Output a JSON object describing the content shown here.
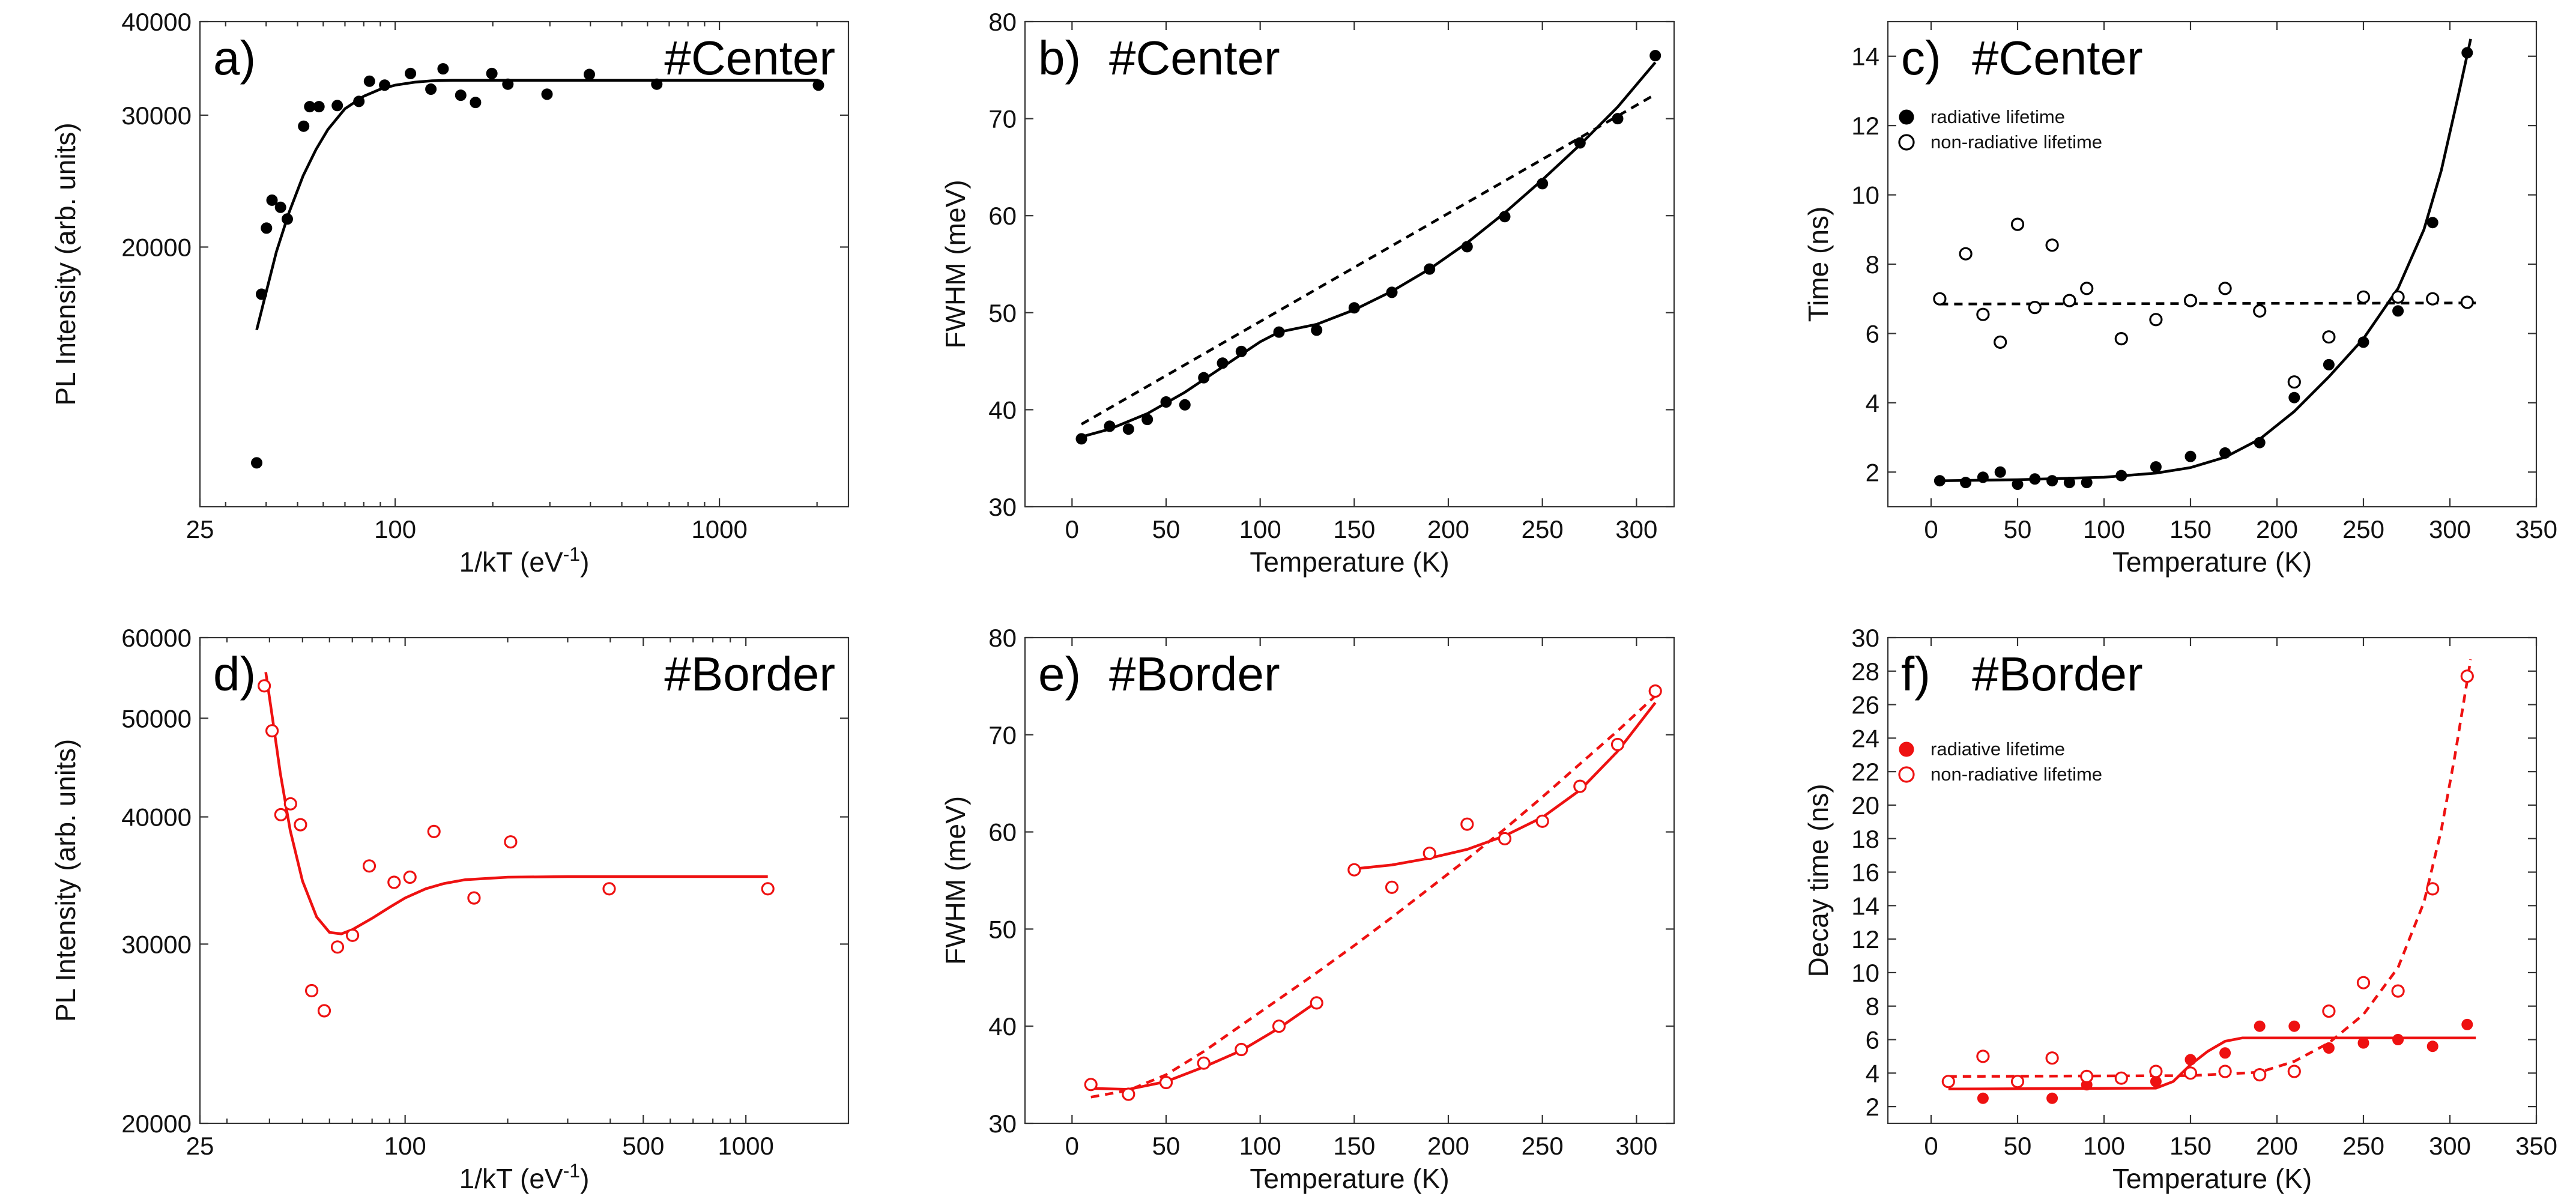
{
  "colors": {
    "center": "#000000",
    "border": "#ee1111"
  },
  "panels": [
    {
      "id": "a",
      "letter": "a)",
      "title": "#Center",
      "color": "#000000",
      "xscale": "log",
      "yscale": "log",
      "xlim": [
        25,
        2500
      ],
      "ylim": [
        9000,
        40000
      ],
      "xticks": [
        25,
        100,
        1000
      ],
      "xticklabels": [
        "25",
        "100",
        "1000"
      ],
      "yticks": [
        20000,
        30000,
        40000
      ],
      "yticklabels": [
        "20000",
        "30000",
        "40000"
      ],
      "xlabel": "1/kT (eV",
      "xlabel_sup": "-1",
      "xlabel_end": ")",
      "ylabel": "PL Intensity (arb. units)",
      "series": [
        {
          "name": "PL intensity",
          "marker": "filled",
          "x": [
            37.4,
            38.7,
            40.1,
            41.7,
            44.3,
            46.5,
            52.2,
            54.5,
            58.2,
            66.3,
            77.3,
            83.3,
            92.8,
            111.5,
            128.9,
            140.5,
            159.3,
            176.9,
            198.7,
            222.6,
            294,
            397,
            641,
            2020
          ],
          "y": [
            10300,
            17300,
            21200,
            23100,
            22600,
            21800,
            29000,
            30800,
            30800,
            30900,
            31300,
            33300,
            32900,
            34100,
            32500,
            34600,
            31900,
            31200,
            34100,
            33000,
            32000,
            34000,
            33000,
            32900
          ]
        }
      ],
      "fits": [
        {
          "style": "solid",
          "x": [
            37.4,
            40,
            43,
            47,
            52,
            57,
            62,
            70,
            80,
            90,
            100,
            115,
            130,
            150,
            200,
            300,
            500,
            1000,
            2020
          ],
          "y": [
            15500,
            17400,
            19700,
            22200,
            24900,
            27000,
            28700,
            30600,
            31800,
            32500,
            32900,
            33200,
            33350,
            33400,
            33400,
            33400,
            33400,
            33400,
            33400
          ]
        }
      ]
    },
    {
      "id": "b",
      "letter": "b)",
      "title": "#Center",
      "color": "#000000",
      "xscale": "linear",
      "yscale": "linear",
      "xlim": [
        -25,
        320
      ],
      "ylim": [
        30,
        80
      ],
      "xticks": [
        0,
        50,
        100,
        150,
        200,
        250,
        300
      ],
      "xticklabels": [
        "0",
        "50",
        "100",
        "150",
        "200",
        "250",
        "300"
      ],
      "yticks": [
        30,
        40,
        50,
        60,
        70,
        80
      ],
      "yticklabels": [
        "30",
        "40",
        "50",
        "60",
        "70",
        "80"
      ],
      "xlabel": "Temperature (K)",
      "ylabel": "FWHM (meV)",
      "series": [
        {
          "name": "FWHM",
          "marker": "filled",
          "x": [
            5,
            20,
            30,
            40,
            50,
            60,
            70,
            80,
            90,
            110,
            130,
            150,
            170,
            190,
            210,
            230,
            250,
            270,
            290,
            310
          ],
          "y": [
            37,
            38.3,
            38,
            39,
            40.8,
            40.5,
            43.3,
            44.8,
            46,
            48,
            48.2,
            50.5,
            52.1,
            54.5,
            56.8,
            59.9,
            63.3,
            67.5,
            70,
            76.5
          ]
        }
      ],
      "fits": [
        {
          "style": "solid",
          "x": [
            5,
            20,
            40,
            60,
            80,
            100,
            110,
            130,
            150,
            170,
            190,
            210,
            230,
            250,
            270,
            290,
            310
          ],
          "y": [
            37.2,
            38,
            39.6,
            41.8,
            44.4,
            47,
            48,
            48.8,
            50.3,
            52.2,
            54.5,
            57.2,
            60.3,
            63.7,
            67.3,
            71.2,
            75.8
          ]
        },
        {
          "style": "dashed",
          "x": [
            5,
            310
          ],
          "y": [
            38.5,
            72.5
          ]
        }
      ]
    },
    {
      "id": "c",
      "letter": "c)",
      "title": "#Center",
      "color": "#000000",
      "xscale": "linear",
      "yscale": "linear",
      "xlim": [
        -25,
        350
      ],
      "ylim": [
        1,
        15
      ],
      "xticks": [
        0,
        50,
        100,
        150,
        200,
        250,
        300,
        350
      ],
      "xticklabels": [
        "0",
        "50",
        "100",
        "150",
        "200",
        "250",
        "300",
        "350"
      ],
      "yticks": [
        2,
        4,
        6,
        8,
        10,
        12,
        14
      ],
      "yticklabels": [
        "2",
        "4",
        "6",
        "8",
        "10",
        "12",
        "14"
      ],
      "xlabel": "Temperature (K)",
      "ylabel": "Time (ns)",
      "legend": [
        {
          "label": "radiative lifetime",
          "marker": "filled"
        },
        {
          "label": "non-radiative lifetime",
          "marker": "open"
        }
      ],
      "series": [
        {
          "name": "radiative lifetime",
          "marker": "filled",
          "x": [
            5,
            20,
            30,
            40,
            50,
            60,
            70,
            80,
            90,
            110,
            130,
            150,
            170,
            190,
            210,
            230,
            250,
            270,
            290,
            310
          ],
          "y": [
            1.75,
            1.7,
            1.85,
            2.0,
            1.65,
            1.8,
            1.75,
            1.7,
            1.7,
            1.9,
            2.15,
            2.45,
            2.55,
            2.85,
            4.15,
            5.1,
            5.75,
            6.65,
            9.2,
            14.1
          ]
        },
        {
          "name": "non-radiative lifetime",
          "marker": "open",
          "x": [
            5,
            20,
            30,
            40,
            50,
            60,
            70,
            80,
            90,
            110,
            130,
            150,
            170,
            190,
            210,
            230,
            250,
            270,
            290,
            310
          ],
          "y": [
            7.0,
            8.3,
            6.55,
            5.75,
            9.15,
            6.75,
            8.55,
            6.95,
            7.3,
            5.85,
            6.4,
            6.95,
            7.3,
            6.65,
            4.6,
            5.9,
            7.05,
            7.05,
            7.0,
            6.9
          ]
        }
      ],
      "fits": [
        {
          "style": "solid",
          "x": [
            5,
            50,
            100,
            130,
            150,
            170,
            190,
            210,
            230,
            250,
            270,
            285,
            295,
            305,
            312
          ],
          "y": [
            1.75,
            1.78,
            1.85,
            1.97,
            2.13,
            2.43,
            2.95,
            3.75,
            4.75,
            5.85,
            7.3,
            9.0,
            10.7,
            12.9,
            14.5
          ]
        },
        {
          "style": "dashed",
          "x": [
            5,
            315
          ],
          "y": [
            6.85,
            6.88
          ]
        }
      ]
    },
    {
      "id": "d",
      "letter": "d)",
      "title": "#Border",
      "color": "#ee1111",
      "xscale": "log",
      "yscale": "log",
      "xlim": [
        25,
        2000
      ],
      "ylim": [
        20000,
        60000
      ],
      "xticks": [
        25,
        100,
        500,
        1000
      ],
      "xticklabels": [
        "25",
        "100",
        "500",
        "1000"
      ],
      "yticks": [
        20000,
        30000,
        40000,
        50000,
        60000
      ],
      "yticklabels": [
        "20000",
        "30000",
        "40000",
        "50000",
        "60000"
      ],
      "xlabel": "1/kT (eV",
      "xlabel_sup": "-1",
      "xlabel_end": ")",
      "ylabel": "PL Intensity (arb. units)",
      "series": [
        {
          "name": "PL intensity",
          "marker": "open",
          "x": [
            38.6,
            40.7,
            43.2,
            46.1,
            49.3,
            53.2,
            57.9,
            63.3,
            70.1,
            78.5,
            92.8,
            103.3,
            121.5,
            159.3,
            204,
            397,
            1160
          ],
          "y": [
            53800,
            48600,
            40200,
            41200,
            39300,
            27000,
            25800,
            29800,
            30600,
            35800,
            34500,
            34900,
            38700,
            33300,
            37800,
            34000,
            34000
          ]
        }
      ],
      "fits": [
        {
          "style": "solid",
          "x": [
            39,
            41,
            43,
            46,
            50,
            55,
            60,
            65,
            70,
            80,
            90,
            100,
            115,
            130,
            150,
            200,
            300,
            500,
            1160
          ],
          "y": [
            55500,
            49500,
            44200,
            38800,
            34600,
            31900,
            30800,
            30700,
            31000,
            31800,
            32600,
            33300,
            34000,
            34400,
            34700,
            34900,
            34950,
            34950,
            34950
          ]
        }
      ]
    },
    {
      "id": "e",
      "letter": "e)",
      "title": "#Border",
      "color": "#ee1111",
      "xscale": "linear",
      "yscale": "linear",
      "xlim": [
        -25,
        320
      ],
      "ylim": [
        30,
        80
      ],
      "xticks": [
        0,
        50,
        100,
        150,
        200,
        250,
        300
      ],
      "xticklabels": [
        "0",
        "50",
        "100",
        "150",
        "200",
        "250",
        "300"
      ],
      "yticks": [
        30,
        40,
        50,
        60,
        70,
        80
      ],
      "yticklabels": [
        "30",
        "40",
        "50",
        "60",
        "70",
        "80"
      ],
      "xlabel": "Temperature (K)",
      "ylabel": "FWHM (meV)",
      "series": [
        {
          "name": "FWHM",
          "marker": "open",
          "x": [
            10,
            30,
            50,
            70,
            90,
            110,
            130,
            150,
            170,
            190,
            210,
            230,
            250,
            270,
            290,
            310
          ],
          "y": [
            34,
            33,
            34.2,
            36.2,
            37.6,
            40,
            42.4,
            56.1,
            54.3,
            57.8,
            60.8,
            59.3,
            61.1,
            64.7,
            69,
            74.5
          ]
        }
      ],
      "fits": [
        {
          "style": "solid",
          "x": [
            10,
            30,
            50,
            70,
            90,
            110,
            130
          ],
          "y": [
            33.6,
            33.5,
            34.3,
            35.8,
            37.5,
            39.8,
            42.5
          ]
        },
        {
          "style": "solid",
          "x": [
            150,
            170,
            190,
            210,
            230,
            250,
            270,
            290,
            310
          ],
          "y": [
            56.2,
            56.6,
            57.3,
            58.2,
            59.6,
            61.5,
            64.3,
            68.3,
            73.3
          ]
        },
        {
          "style": "dashed",
          "x": [
            10,
            30,
            50,
            70,
            90,
            110,
            130,
            150,
            170,
            190,
            210,
            230,
            250,
            270,
            290,
            310
          ],
          "y": [
            32.7,
            33.4,
            35,
            37.4,
            40.1,
            42.8,
            45.5,
            48.3,
            51.2,
            54.2,
            57.2,
            60.3,
            63.6,
            67,
            70.4,
            74
          ]
        }
      ]
    },
    {
      "id": "f",
      "letter": "f)",
      "title": "#Border",
      "color": "#ee1111",
      "xscale": "linear",
      "yscale": "linear",
      "xlim": [
        -25,
        350
      ],
      "ylim": [
        1,
        30
      ],
      "xticks": [
        0,
        50,
        100,
        150,
        200,
        250,
        300,
        350
      ],
      "xticklabels": [
        "0",
        "50",
        "100",
        "150",
        "200",
        "250",
        "300",
        "350"
      ],
      "yticks": [
        2,
        4,
        6,
        8,
        10,
        12,
        14,
        16,
        18,
        20,
        22,
        24,
        26,
        28,
        30
      ],
      "yticklabels": [
        "2",
        "4",
        "6",
        "8",
        "10",
        "12",
        "14",
        "16",
        "18",
        "20",
        "22",
        "24",
        "26",
        "28",
        "30"
      ],
      "xlabel": "Temperature (K)",
      "ylabel": "Decay time (ns)",
      "legend": [
        {
          "label": "radiative lifetime",
          "marker": "filled"
        },
        {
          "label": "non-radiative lifetime",
          "marker": "open"
        }
      ],
      "series": [
        {
          "name": "radiative lifetime",
          "marker": "filled",
          "x": [
            30,
            70,
            90,
            130,
            150,
            170,
            190,
            210,
            230,
            250,
            270,
            290,
            310
          ],
          "y": [
            2.5,
            2.5,
            3.3,
            3.5,
            4.8,
            5.2,
            6.8,
            6.8,
            5.5,
            5.8,
            6.0,
            5.6,
            6.9
          ]
        },
        {
          "name": "non-radiative lifetime",
          "marker": "open",
          "x": [
            10,
            30,
            50,
            70,
            90,
            110,
            130,
            150,
            170,
            190,
            210,
            230,
            250,
            270,
            290,
            310
          ],
          "y": [
            3.5,
            5.0,
            3.5,
            4.9,
            3.8,
            3.7,
            4.1,
            4.0,
            4.1,
            3.9,
            4.1,
            7.7,
            9.4,
            8.9,
            15.0,
            27.7
          ]
        }
      ],
      "fits": [
        {
          "style": "solid",
          "x": [
            10,
            130,
            140,
            150,
            160,
            170,
            180,
            315
          ],
          "y": [
            3.05,
            3.1,
            3.5,
            4.5,
            5.3,
            5.9,
            6.1,
            6.1
          ]
        },
        {
          "style": "dashed",
          "x": [
            10,
            150,
            190,
            210,
            230,
            250,
            270,
            285,
            295,
            303,
            312
          ],
          "y": [
            3.8,
            3.85,
            4.05,
            4.7,
            5.8,
            7.5,
            10.3,
            14.2,
            18.5,
            23.0,
            28.7
          ]
        }
      ]
    }
  ]
}
